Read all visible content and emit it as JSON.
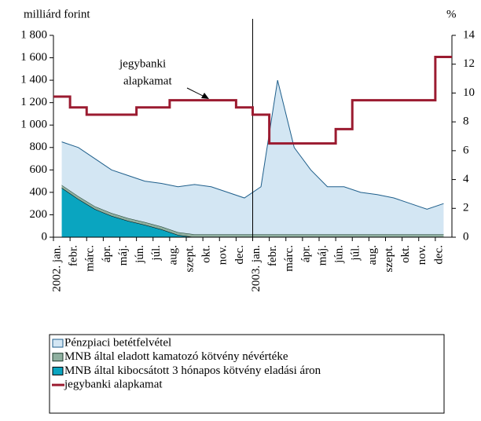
{
  "chart_data": {
    "type": "area",
    "ylabel": "milliárd forint",
    "y2label": "%",
    "annotation": [
      "jegybanki",
      "alapkamat"
    ],
    "categories": [
      "2002. jan.",
      "febr.",
      "márc.",
      "ápr.",
      "máj.",
      "jún.",
      "júl.",
      "aug.",
      "szept.",
      "okt.",
      "nov.",
      "dec.",
      "2003. jan.",
      "febr.",
      "márc.",
      "ápr.",
      "máj.",
      "jún.",
      "júl.",
      "aug.",
      "szept.",
      "okt.",
      "nov.",
      "dec."
    ],
    "series": [
      {
        "name": "MNB által kibocsátott 3 hónapos kötvény eladási áron",
        "type": "area",
        "color": "#0aa5c0",
        "stroke": "#000000",
        "values": [
          440,
          340,
          250,
          190,
          145,
          110,
          70,
          20,
          0,
          0,
          0,
          0,
          0,
          0,
          0,
          0,
          0,
          0,
          0,
          0,
          0,
          0,
          0,
          0
        ]
      },
      {
        "name": "MNB által eladott kamatozó kötvény névértéke",
        "type": "area",
        "color": "#8fb0a0",
        "stroke": "#1d3b2e",
        "values": [
          25,
          25,
          25,
          25,
          25,
          25,
          25,
          25,
          25,
          25,
          25,
          25,
          25,
          25,
          25,
          25,
          25,
          25,
          25,
          25,
          25,
          25,
          25,
          25
        ]
      },
      {
        "name": "Pénzpiaci betétfelvétel",
        "type": "area",
        "color": "#d3e6f3",
        "stroke": "#1f5f8b",
        "values": [
          385,
          435,
          425,
          385,
          380,
          365,
          385,
          405,
          445,
          425,
          375,
          325,
          425,
          1375,
          775,
          575,
          425,
          425,
          375,
          355,
          325,
          275,
          225,
          275
        ]
      },
      {
        "name": "jegybanki alapkamat",
        "type": "line",
        "axis": "y2",
        "color": "#9b1b30",
        "values": [
          9.75,
          9,
          8.5,
          8.5,
          8.5,
          9,
          9,
          9.5,
          9.5,
          9.5,
          9.5,
          9,
          8.5,
          6.5,
          6.5,
          6.5,
          6.5,
          7.5,
          9.5,
          9.5,
          9.5,
          9.5,
          9.5,
          12.5
        ]
      }
    ],
    "ylim": [
      0,
      1800
    ],
    "yticks": [
      0,
      200,
      400,
      600,
      800,
      {
        "value": 1000,
        "label": "1 000"
      },
      {
        "value": 1200,
        "label": "1 200"
      },
      {
        "value": 1400,
        "label": "1 400"
      },
      {
        "value": 1600,
        "label": "1 600"
      },
      {
        "value": 1800,
        "label": "1 800"
      }
    ],
    "y2lim": [
      0,
      14
    ],
    "y2ticks": [
      0,
      2,
      4,
      6,
      8,
      10,
      12,
      14
    ],
    "legend": "bottom"
  }
}
